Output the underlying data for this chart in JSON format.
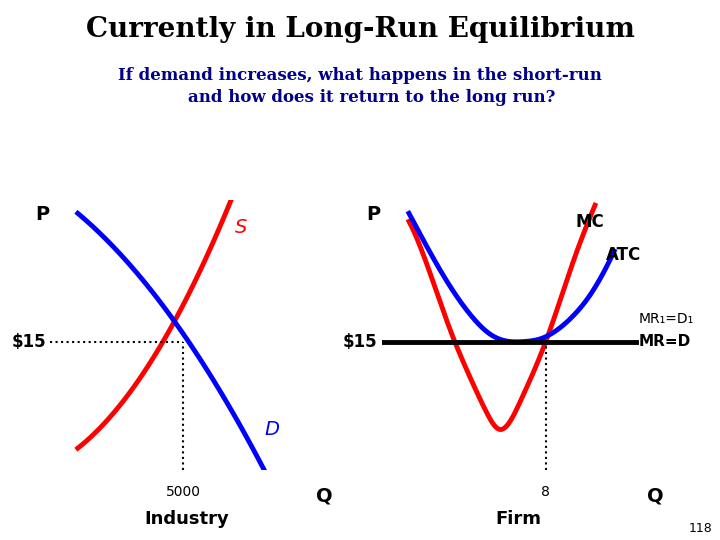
{
  "title": "Currently in Long-Run Equilibrium",
  "subtitle_line1": "If demand increases, what happens in the short-run",
  "subtitle_line2": "    and how does it return to the long run?",
  "title_color": "#000000",
  "subtitle_color": "#00008B",
  "price_label": "$15",
  "industry_xlabel": "Industry",
  "industry_q_label": "Q",
  "industry_tick": "5000",
  "firm_xlabel": "Firm",
  "firm_q_label": "Q",
  "firm_tick": "8",
  "page_number": "118",
  "bg_color": "#ffffff"
}
